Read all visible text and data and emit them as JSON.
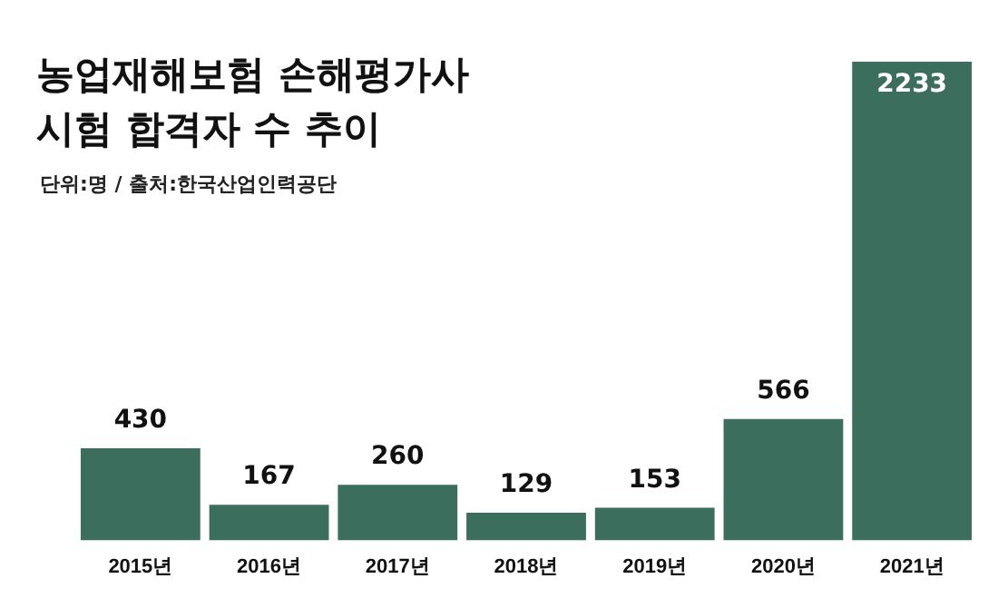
{
  "chart_data": {
    "type": "bar",
    "title": "농업재해보험 손해평가사\n시험 합격자 수 추이",
    "subtitle": "단위:명 / 출처:한국산업인력공단",
    "categories": [
      "2015년",
      "2016년",
      "2017년",
      "2018년",
      "2019년",
      "2020년",
      "2021년"
    ],
    "values": [
      430,
      167,
      260,
      129,
      153,
      566,
      2233
    ],
    "color": "#3b6e5c",
    "data_labels": true,
    "tick_labels": "x",
    "grid": false,
    "legend": false
  }
}
